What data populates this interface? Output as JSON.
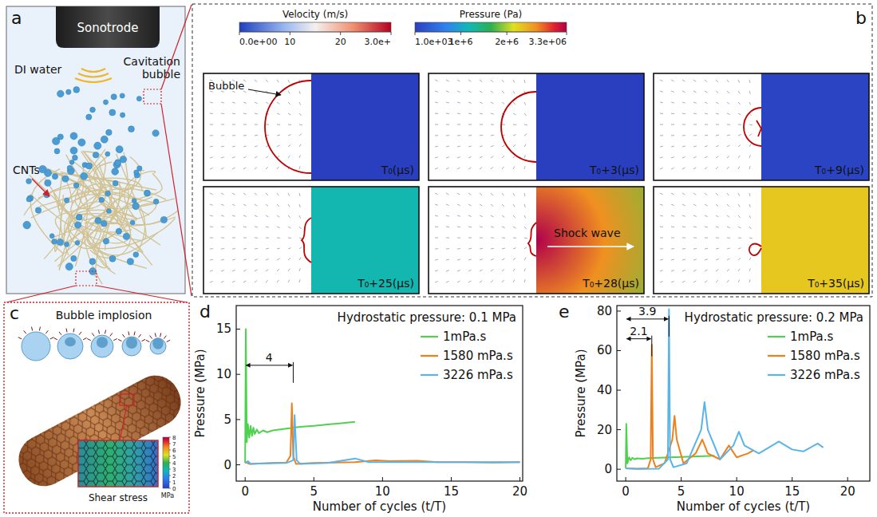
{
  "panels": {
    "a": {
      "letter": "a",
      "sonotrode": "Sonotrode",
      "water": "DI water",
      "bubble": "Cavitation bubble",
      "cnts": "CNTs"
    },
    "b": {
      "letter": "b",
      "velocity_colorbar": {
        "title": "Velocity (m/s)",
        "range": [
          0,
          30
        ],
        "ticks": [
          {
            "value": 0,
            "label": "0.0e+00"
          },
          10,
          20,
          {
            "value": 30,
            "label": "3.0e+"
          }
        ]
      },
      "pressure_colorbar": {
        "title": "Pressure (Pa)",
        "range": [
          1000,
          3300000
        ],
        "ticks": [
          {
            "value": 1000,
            "label": "1.0e+03"
          },
          {
            "value": 1000000,
            "label": "1e+6"
          },
          {
            "value": 2000000,
            "label": "2e+6"
          },
          {
            "value": 3300000,
            "label": "3.3e+06"
          }
        ]
      },
      "frames": [
        {
          "time": "T₀(μs)",
          "pressure": 1000,
          "label": "Bubble"
        },
        {
          "time": "T₀+3(μs)",
          "pressure": 1000
        },
        {
          "time": "T₀+9(μs)",
          "pressure": 50000
        },
        {
          "time": "T₀+25(μs)",
          "pressure": 1200000
        },
        {
          "time": "T₀+28(μs)",
          "pressure": 3300000,
          "label": "Shock wave"
        },
        {
          "time": "T₀+35(μs)",
          "pressure": 2300000
        }
      ]
    },
    "c": {
      "letter": "c",
      "title": "Bubble implosion",
      "inset_label": "Shear stress",
      "colorbar": {
        "unit": "MPa",
        "range": [
          0,
          8
        ],
        "ticks": [
          0,
          1,
          2,
          3,
          4,
          5,
          6,
          7,
          8
        ]
      }
    }
  },
  "chart_data": [
    {
      "type": "line",
      "panel": "d",
      "title": "Hydrostatic pressure: 0.1 MPa",
      "x_label": "Number of cycles (t/T)",
      "y_label": "Pressure (MPa)",
      "xlim": [
        -0.65,
        20.2
      ],
      "ylim": [
        -1.8,
        17.6
      ],
      "xticks": [
        0,
        5,
        10,
        15,
        20
      ],
      "yticks": [
        0,
        5,
        10,
        15
      ],
      "grid": false,
      "legend": "top-right",
      "series": [
        {
          "name": "1mPa.s",
          "color": "#4fd14f",
          "x": [
            0,
            0.05,
            0.12,
            0.2,
            0.3,
            0.4,
            0.5,
            0.6,
            0.7,
            0.85,
            1,
            1.3,
            1.6,
            2,
            3,
            4,
            5,
            6,
            7,
            8
          ],
          "values": [
            0.2,
            15,
            2.5,
            4.5,
            3,
            4.3,
            3.2,
            4.1,
            3.4,
            3.9,
            3.5,
            3.8,
            3.6,
            3.8,
            4.0,
            4.2,
            4.3,
            4.45,
            4.6,
            4.75
          ]
        },
        {
          "name": "1580 mPa.s",
          "color": "#f07f1a",
          "x": [
            0,
            0.3,
            1,
            2,
            3,
            3.3,
            3.4,
            3.5,
            3.7,
            5,
            8,
            9.5,
            10.5,
            12.5,
            14,
            16,
            18,
            20
          ],
          "values": [
            0.3,
            0.1,
            0.15,
            0.2,
            0.25,
            1,
            6.8,
            1,
            0.1,
            0.2,
            0.3,
            0.5,
            0.4,
            0.45,
            0.3,
            0.3,
            0.25,
            0.3
          ]
        },
        {
          "name": "3226 mPa.s",
          "color": "#5ab4e8",
          "x": [
            0,
            0.2,
            0.4,
            1,
            3,
            3.5,
            3.6,
            3.75,
            4,
            6,
            8,
            9,
            12,
            15,
            20
          ],
          "values": [
            0.2,
            0.4,
            0.1,
            0.15,
            0.2,
            0.5,
            5.5,
            0.5,
            0.1,
            0.2,
            0.7,
            0.3,
            0.3,
            0.3,
            0.3
          ]
        }
      ],
      "annotations": [
        {
          "text": "4",
          "x": [
            0,
            3.5
          ],
          "y": 11
        }
      ]
    },
    {
      "type": "line",
      "panel": "e",
      "title": "Hydrostatic pressure: 0.2 MPa",
      "x_label": "Number of cycles (t/T)",
      "y_label": "Pressure (MPa)",
      "xlim": [
        -0.8,
        22
      ],
      "ylim": [
        -6,
        82.8
      ],
      "xticks": [
        0,
        5,
        10,
        15,
        20
      ],
      "yticks": [
        0,
        20,
        40,
        60,
        80
      ],
      "grid": false,
      "legend": "top-right",
      "series": [
        {
          "name": "1mPa.s",
          "color": "#4fd14f",
          "x": [
            0,
            0.05,
            0.15,
            0.3,
            0.45,
            0.6,
            0.8,
            1,
            1.5,
            2,
            3,
            4,
            5,
            6,
            7,
            8
          ],
          "values": [
            0.5,
            23,
            3,
            6,
            4.5,
            5.8,
            5,
            5.5,
            5.3,
            5.6,
            5.8,
            6,
            6.2,
            6.4,
            6.6,
            6.8
          ]
        },
        {
          "name": "1580 mPa.s",
          "color": "#f07f1a",
          "x": [
            0,
            1,
            2,
            2.25,
            2.35,
            2.45,
            2.7,
            3.5,
            4.2,
            4.4,
            4.6,
            5.2,
            6.3,
            6.9,
            7.4,
            8.5,
            9.3,
            10,
            11,
            11.5
          ],
          "values": [
            0.5,
            0.3,
            0.5,
            5,
            63,
            5,
            1,
            3,
            15,
            27,
            15,
            3,
            8,
            15,
            8,
            5,
            12,
            6,
            8,
            9.5
          ]
        },
        {
          "name": "3226 mPa.s",
          "color": "#5ab4e8",
          "x": [
            0,
            1,
            3,
            3.8,
            3.9,
            4.0,
            4.3,
            5.5,
            6.8,
            7.1,
            7.4,
            8.5,
            9.7,
            10.2,
            10.7,
            12,
            13.8,
            15,
            16,
            17.3,
            17.8
          ],
          "values": [
            0.5,
            0.2,
            0.3,
            5,
            81,
            5,
            1,
            3,
            20,
            34,
            20,
            5,
            12,
            19,
            12,
            8,
            14,
            10,
            9,
            13,
            11
          ]
        }
      ],
      "annotations": [
        {
          "text": "2.1",
          "x": [
            0,
            2.35
          ],
          "y": 66
        },
        {
          "text": "3.9",
          "x": [
            0,
            3.9
          ],
          "y": 76
        }
      ]
    }
  ]
}
